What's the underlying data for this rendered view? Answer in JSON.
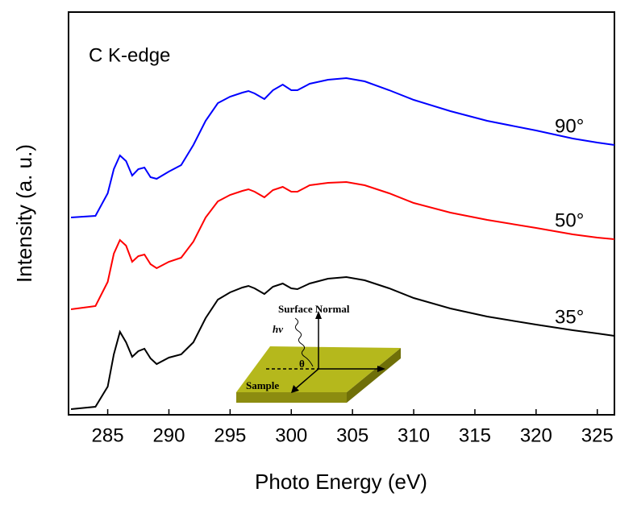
{
  "chart_data": {
    "type": "line",
    "x_label": "Photo Energy (eV)",
    "y_label": "Intensity (a. u.)",
    "annotation": "C K-edge",
    "inset_labels": [
      "Surface Normal",
      "hv",
      "θ",
      "Sample"
    ],
    "x": [
      282,
      284,
      285,
      285.5,
      286,
      286.5,
      287,
      287.5,
      288,
      288.5,
      289,
      290,
      291,
      292,
      293,
      294,
      295,
      296,
      296.5,
      297,
      297.8,
      298.5,
      299.3,
      300,
      300.5,
      301.5,
      303,
      304.5,
      306,
      308,
      310,
      313,
      316,
      320,
      323,
      325,
      326.4
    ],
    "series": [
      {
        "name": "90°",
        "color": "#0000ff",
        "values": [
          245,
          247,
          275,
          305,
          322,
          315,
          297,
          305,
          307,
          295,
          293,
          302,
          310,
          335,
          365,
          387,
          395,
          400,
          402,
          399,
          392,
          403,
          410,
          403,
          403,
          411,
          416,
          418,
          414,
          403,
          391,
          377,
          365,
          353,
          343,
          338,
          335
        ]
      },
      {
        "name": "50°",
        "color": "#ff0000",
        "values": [
          131,
          135,
          165,
          200,
          217,
          210,
          190,
          197,
          199,
          187,
          182,
          190,
          195,
          215,
          245,
          265,
          273,
          278,
          280,
          277,
          270,
          279,
          283,
          277,
          277,
          285,
          288,
          289,
          285,
          275,
          263,
          251,
          242,
          232,
          224,
          220,
          218
        ]
      },
      {
        "name": "35°",
        "color": "#000000",
        "values": [
          7,
          10,
          35,
          75,
          103,
          90,
          72,
          79,
          82,
          70,
          63,
          71,
          75,
          90,
          120,
          143,
          152,
          158,
          160,
          157,
          150,
          159,
          163,
          157,
          156,
          163,
          169,
          171,
          167,
          157,
          145,
          132,
          122,
          112,
          105,
          101,
          98
        ]
      }
    ],
    "xlim": [
      281.8,
      326.4
    ],
    "xticks": [
      285,
      290,
      295,
      300,
      305,
      310,
      315,
      320,
      325
    ],
    "ylim": [
      0,
      500
    ],
    "grid": false
  }
}
